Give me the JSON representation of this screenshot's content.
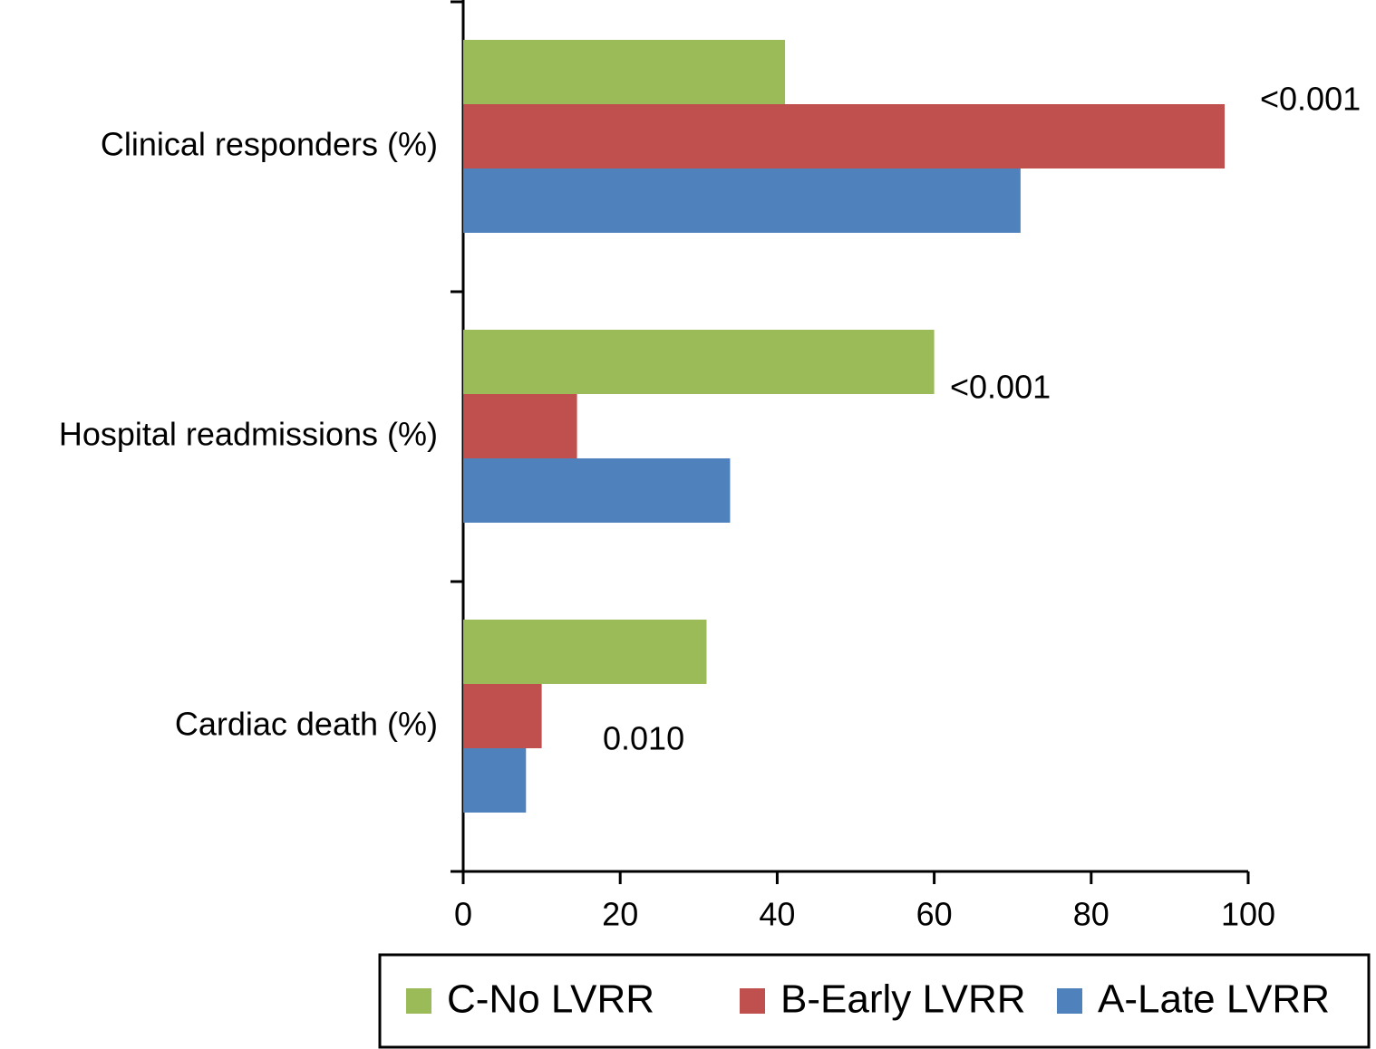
{
  "chart_data": {
    "type": "hbar",
    "categories": [
      "Clinical responders (%)",
      "Hospital readmissions (%)",
      "Cardiac death (%)"
    ],
    "series": [
      {
        "name": "C-No LVRR",
        "color": "#9bbb59",
        "values": [
          41,
          60,
          31
        ]
      },
      {
        "name": "B-Early LVRR",
        "color": "#c0504d",
        "values": [
          97,
          14.5,
          10
        ]
      },
      {
        "name": "A-Late LVRR",
        "color": "#4f81bd",
        "values": [
          71,
          34,
          8
        ]
      }
    ],
    "annotations": [
      "<0.001",
      "<0.001",
      "0.010"
    ],
    "xlim": [
      0,
      100
    ],
    "xticks": [
      0,
      20,
      40,
      60,
      80,
      100
    ],
    "legend": "bottom-right"
  }
}
